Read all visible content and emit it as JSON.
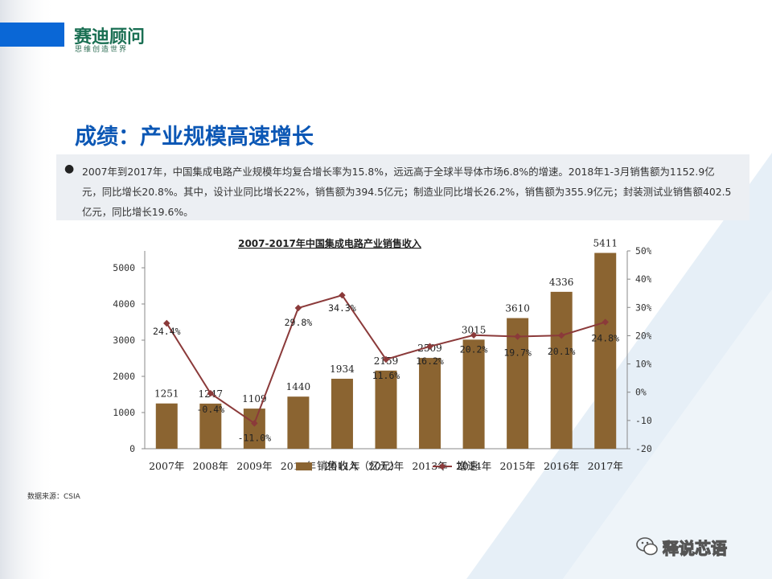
{
  "brand": {
    "name": "赛迪顾问",
    "tagline": "思维创造世界"
  },
  "title": "成绩：产业规模高速增长",
  "summary": {
    "bullet": "●",
    "text": "2007年到2017年，中国集成电路产业规模年均复合增长率为15.8%，远远高于全球半导体市场6.8%的增速。2018年1-3月销售额为1152.9亿元，同比增长20.8%。其中，设计业同比增长22%，销售额为394.5亿元；制造业同比增长26.2%，销售额为355.9亿元；封装测试业销售额402.5亿元，同比增长19.6%。"
  },
  "source": "数据来源：CSIA",
  "watermark": {
    "text": "释说芯语",
    "icon": "wechat-icon"
  },
  "colors": {
    "accent": "#0a67d6",
    "title": "#0b57b5",
    "bar": "#8b6431",
    "line": "#8b3a3a"
  },
  "chart_data": {
    "type": "bar",
    "title": "2007-2017年中国集成电路产业销售收入",
    "categories": [
      "2007年",
      "2008年",
      "2009年",
      "2010年",
      "2011年",
      "2012年",
      "2013年",
      "2014年",
      "2015年",
      "2016年",
      "2017年"
    ],
    "series": [
      {
        "name": "销售收入（亿元）",
        "type": "bar",
        "axis": "left",
        "values": [
          1251,
          1247,
          1109,
          1440,
          1934,
          2159,
          2509,
          3015,
          3610,
          4336,
          5411
        ],
        "labels": [
          "1251",
          "1247",
          "1109",
          "1440",
          "1934",
          "2159",
          "2509",
          "3015",
          "3610",
          "4336",
          "5411"
        ]
      },
      {
        "name": "增速",
        "type": "line",
        "axis": "right",
        "values": [
          24.4,
          -0.4,
          -11.0,
          29.8,
          34.3,
          11.6,
          16.2,
          20.2,
          19.7,
          20.1,
          24.8
        ],
        "labels": [
          "24.4%",
          "-0.4%",
          "-11.0%",
          "29.8%",
          "34.3%",
          "11.6%",
          "16.2%",
          "20.2%",
          "19.7%",
          "20.1%",
          "24.8%"
        ]
      }
    ],
    "y_left": {
      "range": [
        0,
        5000
      ],
      "ticks": [
        "0",
        "1000",
        "2000",
        "3000",
        "4000",
        "5000"
      ]
    },
    "y_right": {
      "range": [
        -20,
        50
      ],
      "ticks": [
        "-20%",
        "-10%",
        "0%",
        "10%",
        "20%",
        "30%",
        "40%",
        "50%"
      ]
    },
    "grid": false,
    "legend": "bottom"
  }
}
